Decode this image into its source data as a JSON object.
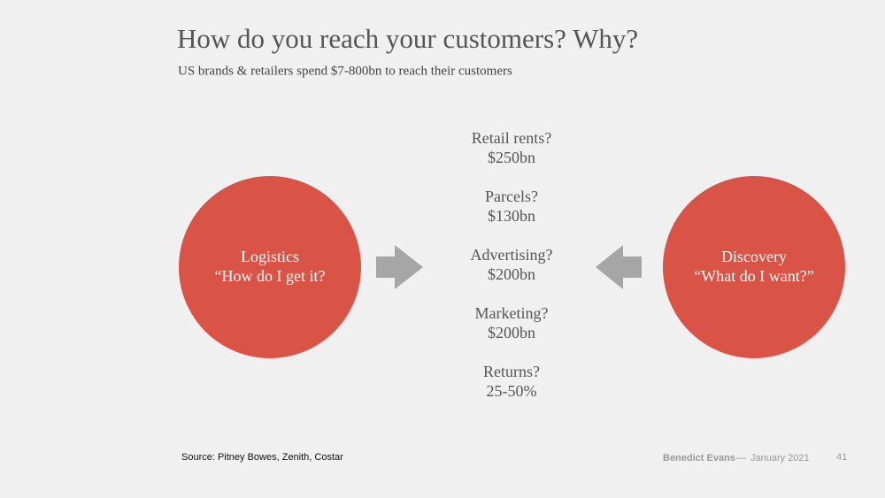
{
  "header": {
    "title": "How do you reach your customers? Why?",
    "subtitle": "US brands & retailers spend $7-800bn to reach their customers"
  },
  "left_circle": {
    "lines": [
      "Logistics",
      "“How do I get it?"
    ]
  },
  "right_circle": {
    "lines": [
      "Discovery",
      "“What do I want?”"
    ]
  },
  "items": [
    {
      "label": "Retail rents?",
      "value": "$250bn"
    },
    {
      "label": "Parcels?",
      "value": "$130bn"
    },
    {
      "label": "Advertising?",
      "value": "$200bn"
    },
    {
      "label": "Marketing?",
      "value": "$200bn"
    },
    {
      "label": "Returns?",
      "value": "25-50%"
    }
  ],
  "footer": {
    "source": "Source: Pitney Bowes, Zenith, Costar",
    "author": "Benedict Evans",
    "separator": "—",
    "date": "January 2021",
    "page": "41"
  }
}
